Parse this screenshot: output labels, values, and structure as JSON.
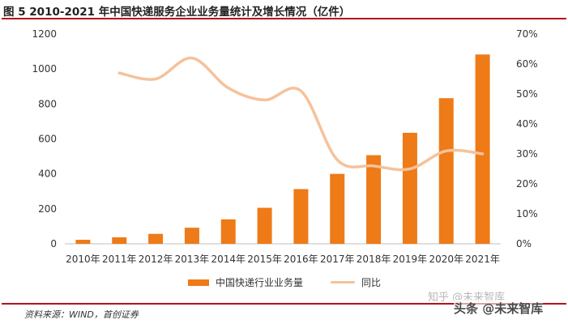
{
  "figure": {
    "title": "图 5 2010-2021 年中国快递服务企业业务量统计及增长情况（亿件）",
    "source": "资料来源：WIND，首创证券"
  },
  "watermarks": {
    "primary": "知乎 @未来智库",
    "secondary": "头条 @未来智库"
  },
  "colors": {
    "bar": "#ee7a18",
    "line": "#f5c29b",
    "title_rule": "#b5121b"
  },
  "chart_data": {
    "type": "bar",
    "title": "",
    "categories": [
      "2010年",
      "2011年",
      "2012年",
      "2013年",
      "2014年",
      "2015年",
      "2016年",
      "2017年",
      "2018年",
      "2019年",
      "2020年",
      "2021年"
    ],
    "series": [
      {
        "name": "中国快递行业业务量",
        "type": "bar",
        "axis": "left",
        "values": [
          23,
          37,
          57,
          92,
          140,
          206,
          313,
          400,
          507,
          635,
          833,
          1083
        ]
      },
      {
        "name": "同比",
        "type": "line",
        "axis": "right",
        "values": [
          null,
          57,
          55,
          62,
          52,
          48,
          51,
          28,
          26,
          25,
          31,
          30
        ]
      }
    ],
    "y_left": {
      "ylim": [
        0,
        1200
      ],
      "ticks": [
        "0",
        "200",
        "400",
        "600",
        "800",
        "1000",
        "1200"
      ]
    },
    "y_right": {
      "ylim": [
        0,
        70
      ],
      "ticks": [
        "0%",
        "10%",
        "20%",
        "30%",
        "40%",
        "50%",
        "60%",
        "70%"
      ]
    },
    "grid": false,
    "legend_position": "bottom"
  }
}
